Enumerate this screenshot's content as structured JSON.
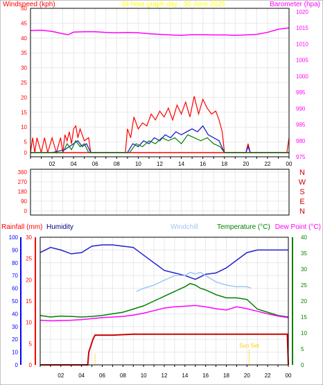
{
  "header": {
    "title": "24 hour graph day : 30 June 2025",
    "left_label": "Windspeed (kph)",
    "right_label": "Barometer (hpa)"
  },
  "colors": {
    "frame": "#000000",
    "grid": "#e8e8e8",
    "wind_axis": "#ff0000",
    "baro_axis": "#ff00ff",
    "title": "#ffff00",
    "wind_gust": "#ff0000",
    "wind_avg": "#1f1fcc",
    "wind_dir": "#008000",
    "barometer": "#ff00ff",
    "direction_letters": "#cc0000",
    "rain_axis": "#ff0000",
    "humidity_axis": "#0000ff",
    "temp_axis": "#008000",
    "windchill": "#a0c8f0",
    "humidity": "#2020d0",
    "temperature": "#008000",
    "dewpoint": "#ff00ff",
    "rainfall": "#cc0000",
    "sun": "#ffcc00"
  },
  "chart_data": [
    {
      "type": "line",
      "panel": "wind-barometer",
      "ylim_left": [
        0,
        50
      ],
      "ylim_right": [
        975,
        1020
      ],
      "left_ticks": [
        "0",
        "5",
        "10",
        "15",
        "20",
        "25",
        "30",
        "35",
        "40",
        "45",
        "50"
      ],
      "right_ticks": [
        "975",
        "980",
        "985",
        "990",
        "995",
        "1000",
        "1005",
        "1010",
        "1015",
        "1020"
      ],
      "x_ticks": [
        "02",
        "04",
        "06",
        "08",
        "10",
        "12",
        "14",
        "16",
        "18",
        "20",
        "22",
        "00"
      ],
      "series": [
        {
          "name": "Barometer",
          "axis": "right",
          "x": [
            0,
            1,
            2,
            3,
            3.5,
            4,
            5,
            6,
            7,
            8,
            9,
            10,
            11,
            12,
            13,
            14,
            15,
            16,
            17,
            18,
            19,
            20,
            21,
            22,
            23,
            24
          ],
          "values": [
            1014.2,
            1014.3,
            1013.9,
            1013.2,
            1012.9,
            1013.7,
            1013.8,
            1013.8,
            1013.6,
            1013.5,
            1013.6,
            1013.5,
            1013.2,
            1013.0,
            1012.8,
            1012.7,
            1012.9,
            1012.9,
            1012.8,
            1012.8,
            1012.7,
            1012.8,
            1013.0,
            1013.6,
            1014.6,
            1015.0
          ]
        },
        {
          "name": "Gust",
          "axis": "left",
          "x": [
            0,
            0.2,
            0.4,
            0.6,
            1.0,
            1.3,
            1.6,
            2.0,
            2.4,
            2.8,
            3.0,
            3.2,
            3.4,
            3.6,
            3.8,
            4.0,
            4.2,
            4.4,
            4.6,
            4.8,
            5.0,
            5.4,
            5.6,
            8.8,
            9.0,
            9.3,
            9.6,
            10.0,
            10.4,
            10.8,
            11.2,
            11.6,
            12.0,
            12.4,
            12.8,
            13.2,
            13.6,
            14.0,
            14.4,
            14.8,
            15.2,
            15.6,
            16.0,
            16.4,
            16.8,
            17.2,
            17.5,
            17.8,
            18.0,
            20.0,
            20.2,
            20.4,
            23.8,
            24.0
          ],
          "values": [
            0,
            5,
            0,
            5,
            0,
            5,
            0,
            5,
            0,
            5,
            0,
            6,
            4,
            7,
            3,
            8,
            9,
            5,
            8,
            6,
            4,
            5,
            0,
            0,
            8,
            5,
            12,
            8,
            10,
            9,
            13,
            11,
            14,
            12,
            15,
            11,
            16,
            13,
            17,
            12,
            19,
            13,
            18,
            15,
            13,
            14,
            11,
            7,
            0,
            0,
            3,
            0,
            0,
            5
          ]
        },
        {
          "name": "Average",
          "axis": "left",
          "x": [
            0,
            2,
            3.2,
            3.6,
            4.0,
            4.4,
            4.8,
            5.2,
            5.6,
            9.0,
            9.5,
            10.0,
            10.5,
            11.0,
            11.5,
            12.0,
            12.5,
            13.0,
            13.5,
            14.0,
            14.5,
            15.0,
            15.5,
            16.0,
            16.5,
            17.0,
            17.5,
            18.0,
            20.0,
            20.2,
            20.4,
            24.0
          ],
          "values": [
            0,
            0,
            1,
            2,
            3,
            4,
            2,
            3,
            0,
            0,
            3,
            2,
            4,
            3,
            5,
            4,
            6,
            5,
            7,
            6,
            7,
            8,
            7,
            9,
            6,
            5,
            4,
            0,
            0,
            2,
            0,
            0
          ]
        },
        {
          "name": "Direction",
          "axis": "left",
          "x": [
            0,
            3.0,
            3.4,
            3.8,
            4.2,
            4.6,
            5.0,
            5.4,
            9.2,
            9.8,
            10.4,
            11.0,
            11.6,
            12.2,
            12.8,
            13.4,
            14.0,
            14.6,
            15.2,
            15.8,
            16.4,
            17.0,
            17.6,
            18.0,
            24.0
          ],
          "values": [
            0,
            0,
            3,
            1,
            4,
            2,
            3,
            0,
            0,
            3,
            2,
            4,
            3,
            5,
            4,
            5,
            3,
            6,
            5,
            4,
            5,
            3,
            2,
            0,
            0
          ]
        }
      ]
    },
    {
      "type": "line",
      "panel": "direction",
      "ticks": [
        "360",
        "270",
        "180",
        "90",
        "0"
      ],
      "letters": [
        "N",
        "W",
        "S",
        "E",
        "N"
      ]
    },
    {
      "type": "line",
      "panel": "temperature-humidity-rain",
      "labels": {
        "rainfall": "Rainfall (mm)",
        "humidity": "Humidity",
        "windchill": "Windchill",
        "temperature": "Temperature (°C)",
        "dewpoint": "Dew Point (°C)"
      },
      "rain_ticks": [
        "0",
        "5",
        "10",
        "15",
        "20",
        "25",
        "30"
      ],
      "humidity_ticks": [
        "0",
        "10",
        "20",
        "30",
        "40",
        "50",
        "60",
        "70",
        "80",
        "90",
        "100"
      ],
      "temp_ticks": [
        "0",
        "5",
        "10",
        "15",
        "20",
        "25",
        "30",
        "35",
        "40"
      ],
      "x_ticks": [
        "02",
        "04",
        "06",
        "08",
        "10",
        "12",
        "14",
        "16",
        "18",
        "20",
        "22",
        "00"
      ],
      "sun_label": "Sun Set",
      "series": [
        {
          "name": "Humidity",
          "x": [
            0,
            1,
            2,
            3,
            4,
            5,
            6,
            7,
            8,
            9,
            10,
            11,
            12,
            13,
            14,
            15,
            16,
            17,
            18,
            19,
            20,
            21,
            22,
            23,
            24
          ],
          "values": [
            88,
            92,
            90,
            87,
            88,
            93,
            94,
            94,
            93,
            92,
            86,
            80,
            74,
            72,
            70,
            67,
            71,
            72,
            76,
            82,
            88,
            90,
            90,
            90,
            90
          ]
        },
        {
          "name": "Windchill",
          "x": [
            0,
            9.2,
            9.3,
            10,
            11,
            12,
            13,
            14,
            14.5,
            15,
            15.5,
            16,
            17,
            18,
            19,
            20,
            20.4,
            20.5,
            24
          ],
          "values": [
            null,
            null,
            23,
            24,
            25,
            26.5,
            28,
            28,
            29,
            28.5,
            29,
            28,
            26,
            25,
            24.5,
            24.5,
            24,
            null,
            null
          ]
        },
        {
          "name": "Temperature",
          "x": [
            0,
            1,
            2,
            3,
            4,
            5,
            6,
            7,
            8,
            9,
            10,
            11,
            12,
            13,
            14,
            14.5,
            15,
            15.5,
            16,
            17,
            18,
            19,
            20,
            21,
            22,
            23,
            24
          ],
          "values": [
            15.5,
            15,
            15.3,
            15.2,
            15,
            15.2,
            15.5,
            16,
            16.5,
            17.5,
            18.5,
            20,
            21.5,
            23,
            24.5,
            25.5,
            25,
            24,
            23.5,
            22,
            21,
            21,
            20.5,
            17.5,
            16.5,
            15.5,
            15
          ]
        },
        {
          "name": "Dew Point",
          "x": [
            0,
            1,
            2,
            3,
            4,
            5,
            6,
            7,
            8,
            9,
            10,
            11,
            12,
            13,
            14,
            15,
            16,
            17,
            18,
            19,
            20,
            21,
            22,
            23,
            24
          ],
          "values": [
            14,
            13.8,
            13.9,
            14,
            14.2,
            14.5,
            14.8,
            15,
            15.2,
            15.6,
            16.2,
            17,
            17.8,
            18.2,
            18.4,
            18.6,
            18.2,
            17.6,
            17.2,
            18.2,
            17.6,
            16.8,
            16,
            15.3,
            14.8
          ]
        },
        {
          "name": "Rainfall",
          "x": [
            0,
            4.6,
            4.7,
            5.1,
            5.3,
            7,
            9,
            12,
            16,
            20,
            23.9,
            24
          ],
          "values": [
            0,
            0,
            3,
            6,
            7,
            7,
            7.2,
            7.2,
            7.2,
            7.2,
            7.2,
            0
          ]
        }
      ],
      "sunset_x": 20.2,
      "sunrise_x": 5.3
    }
  ]
}
